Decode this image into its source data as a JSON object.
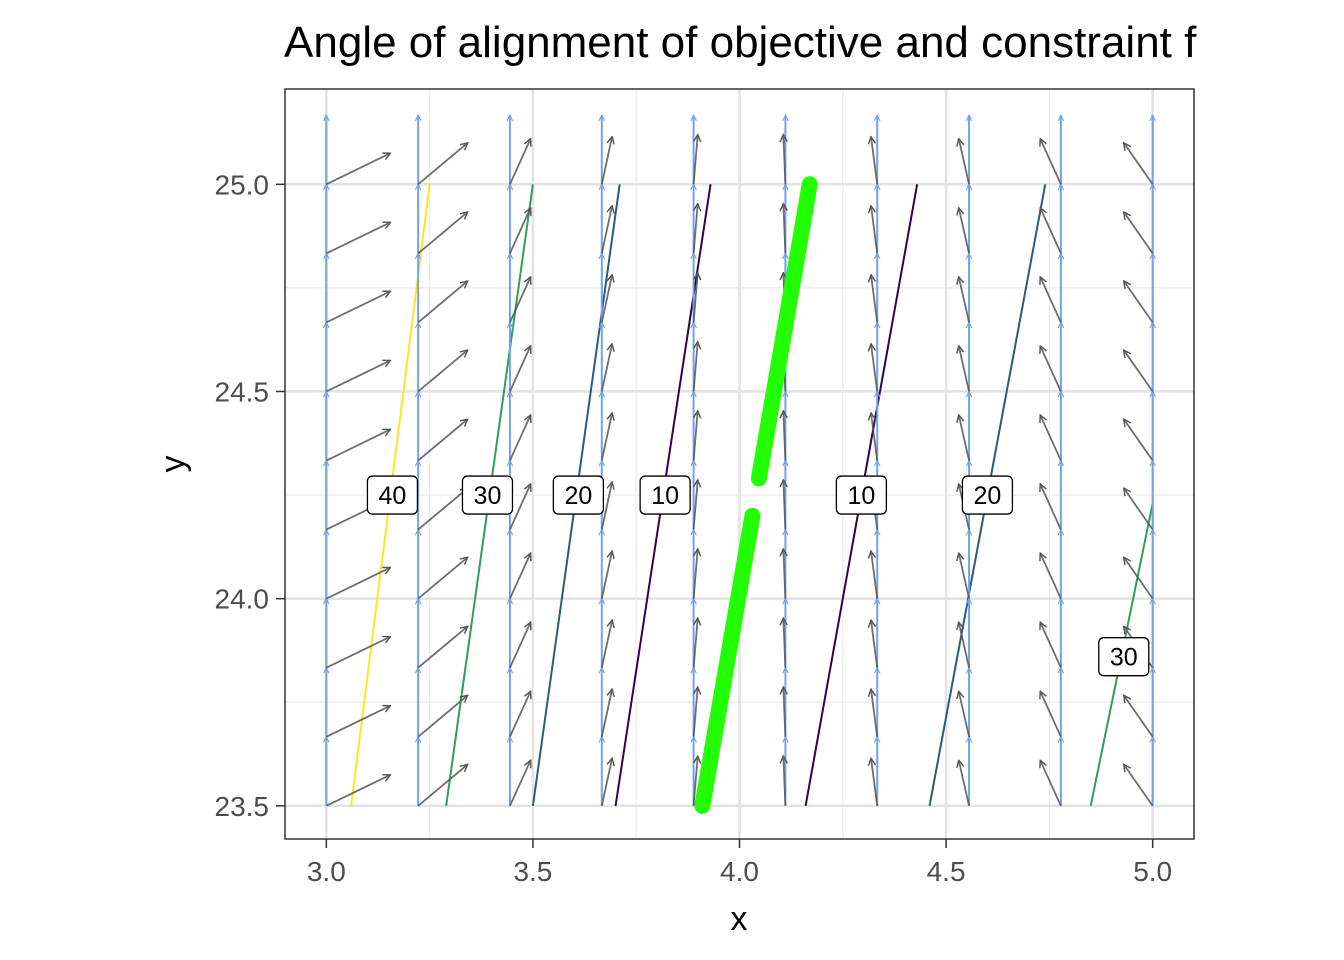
{
  "chart_data": {
    "type": "quiver-contour",
    "title": "Angle of alignment of objective and constraint f",
    "xlabel": "x",
    "ylabel": "y",
    "xlim": [
      2.9,
      5.1
    ],
    "ylim": [
      23.42,
      25.23
    ],
    "x_ticks": [
      3.0,
      3.5,
      4.0,
      4.5,
      5.0
    ],
    "x_tick_labels": [
      "3.0",
      "3.5",
      "4.0",
      "4.5",
      "5.0"
    ],
    "y_ticks": [
      23.5,
      24.0,
      24.5,
      25.0
    ],
    "y_tick_labels": [
      "23.5",
      "24.0",
      "24.5",
      "25.0"
    ],
    "grid": true,
    "constraint_gradient_color": "#6fa3ee",
    "objective_gradient_color": "#555555",
    "optimum_color": "#22ff00",
    "grid_x": [
      3.0,
      3.2222,
      3.4444,
      3.6667,
      3.8889,
      4.1111,
      4.3333,
      4.5556,
      4.7778,
      5.0
    ],
    "grid_y": [
      23.5,
      23.6667,
      23.8333,
      24.0,
      24.1667,
      24.3333,
      24.5,
      24.6667,
      24.8333,
      25.0
    ],
    "objective_arrow_dx": [
      0.155,
      0.12,
      0.05,
      0.025,
      0.01,
      -0.005,
      -0.015,
      -0.025,
      -0.05,
      -0.07
    ],
    "objective_arrow_dy": [
      0.075,
      0.1,
      0.11,
      0.115,
      0.12,
      0.12,
      0.115,
      0.11,
      0.11,
      0.1
    ],
    "contours": [
      {
        "label": "40",
        "color": "#fde725",
        "x1": 3.06,
        "y1": 23.5,
        "x2": 3.25,
        "y2": 25.0,
        "label_x": 3.16,
        "label_y": 24.25
      },
      {
        "label": "30",
        "color": "#2e9e5a",
        "x1": 3.29,
        "y1": 23.5,
        "x2": 3.5,
        "y2": 25.0,
        "label_x": 3.39,
        "label_y": 24.25
      },
      {
        "label": "20",
        "color": "#2b5b7e",
        "x1": 3.5,
        "y1": 23.5,
        "x2": 3.71,
        "y2": 25.0,
        "label_x": 3.61,
        "label_y": 24.25
      },
      {
        "label": "10",
        "color": "#35004f",
        "x1": 3.7,
        "y1": 23.5,
        "x2": 3.93,
        "y2": 25.0,
        "label_x": 3.82,
        "label_y": 24.25
      },
      {
        "label": "10",
        "color": "#35004f",
        "x1": 4.16,
        "y1": 23.5,
        "x2": 4.43,
        "y2": 25.0,
        "label_x": 4.295,
        "label_y": 24.25
      },
      {
        "label": "20",
        "color": "#2b5b7e",
        "x1": 4.46,
        "y1": 23.5,
        "x2": 4.74,
        "y2": 25.0,
        "label_x": 4.6,
        "label_y": 24.25
      },
      {
        "label": "30",
        "color": "#2e9e5a",
        "x1": 4.85,
        "y1": 23.5,
        "x2": 5.0,
        "y2": 24.23,
        "label_x": 4.93,
        "label_y": 23.86
      }
    ],
    "optimum_line": {
      "x1": 3.91,
      "y1": 23.5,
      "x2": 4.17,
      "y2": 25.0,
      "gap_y": [
        24.2,
        24.29
      ]
    }
  }
}
